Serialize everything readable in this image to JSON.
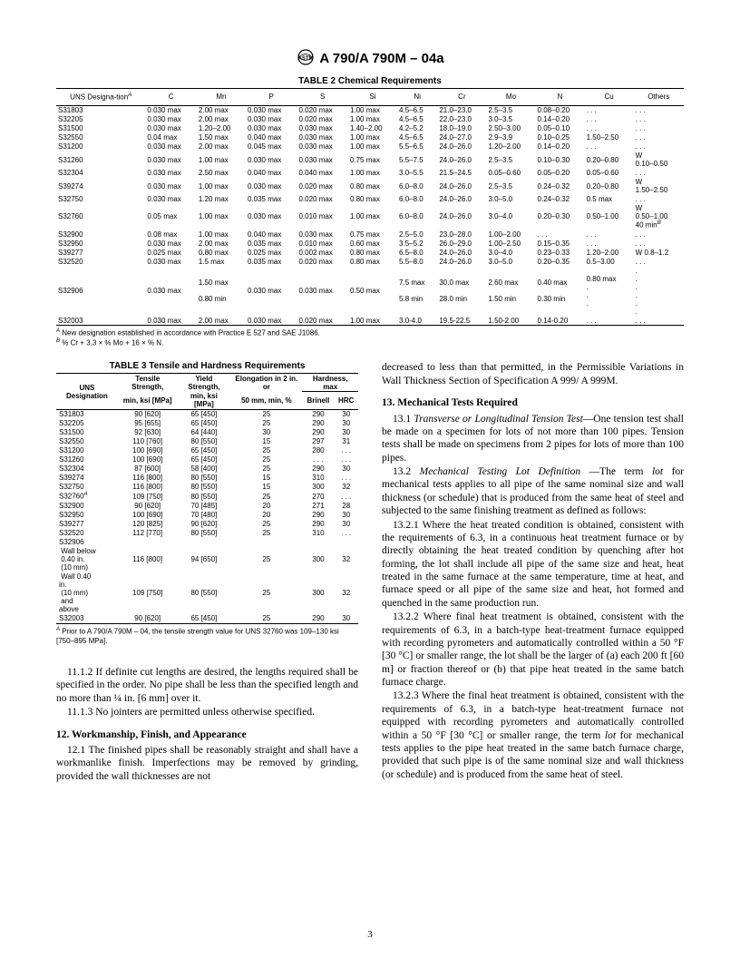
{
  "doc": {
    "logo_alt": "ASTM",
    "title": "A 790/A 790M – 04a",
    "page_number": "3"
  },
  "table2": {
    "caption": "TABLE 2   Chemical Requirements",
    "columns": [
      "UNS Designa-tion",
      "C",
      "Mn",
      "P",
      "S",
      "Si",
      "Ni",
      "Cr",
      "Mo",
      "N",
      "Cu",
      "Others"
    ],
    "col0_sup": "A",
    "rows": [
      [
        "S31803",
        "0.030 max",
        "2.00 max",
        "0.030 max",
        "0.020 max",
        "1.00 max",
        "4.5–6.5",
        "21.0–23.0",
        "2.5–3.5",
        "0.08–0.20",
        ". . .",
        ". . ."
      ],
      [
        "S32205",
        "0.030 max",
        "2.00 max",
        "0.030 max",
        "0.020 max",
        "1.00 max",
        "4.5–6.5",
        "22.0–23.0",
        "3.0–3.5",
        "0.14–0.20",
        ". . .",
        ". . ."
      ],
      [
        "S31500",
        "0.030 max",
        "1.20–2.00",
        "0.030 max",
        "0.030 max",
        "1.40–2.00",
        "4.2–5.2",
        "18.0–19.0",
        "2.50–3.00",
        "0.05–0.10",
        ". . .",
        ". . ."
      ],
      [
        "S32550",
        "0.04 max",
        "1.50 max",
        "0.040 max",
        "0.030 max",
        "1.00 max",
        "4.5–6.5",
        "24.0–27.0",
        "2.9–3.9",
        "0.10–0.25",
        "1.50–2.50",
        ". . ."
      ],
      [
        "S31200",
        "0.030 max",
        "2.00 max",
        "0.045 max",
        "0.030 max",
        "1.00 max",
        "5.5–6.5",
        "24.0–26.0",
        "1.20–2.00",
        "0.14–0.20",
        ". . .",
        ". . ."
      ],
      [
        "S31260",
        "0.030 max",
        "1.00 max",
        "0.030 max",
        "0.030 max",
        "0.75 max",
        "5.5–7.5",
        "24.0–26.0",
        "2.5–3.5",
        "0.10–0.30",
        "0.20–0.80",
        "W 0.10–0.50"
      ],
      [
        "S32304",
        "0.030 max",
        "2.50 max",
        "0.040 max",
        "0.040 max",
        "1.00 max",
        "3.0–5.5",
        "21.5–24.5",
        "0.05–0.60",
        "0.05–0.20",
        "0.05–0.60",
        ". . ."
      ],
      [
        "S39274",
        "0.030 max",
        "1.00 max",
        "0.030 max",
        "0.020 max",
        "0.80 max",
        "6.0–8.0",
        "24.0–26.0",
        "2.5–3.5",
        "0.24–0.32",
        "0.20–0.80",
        "W 1.50–2.50"
      ],
      [
        "S32750",
        "0.030 max",
        "1.20 max",
        "0.035 max",
        "0.020 max",
        "0.80 max",
        "6.0–8.0",
        "24.0–26.0",
        "3.0–5.0",
        "0.24–0.32",
        "0.5 max",
        ". . ."
      ],
      [
        "S32760",
        "0.05 max",
        "1.00 max",
        "0.030 max",
        "0.010 max",
        "1.00 max",
        "6.0–8.0",
        "24.0–26.0",
        "3.0–4.0",
        "0.20–0.30",
        "0.50–1.00",
        "W 0.50–1.00 40 min"
      ],
      [
        "S32900",
        "0.08 max",
        "1.00 max",
        "0.040 max",
        "0.030 max",
        "0.75 max",
        "2.5–5.0",
        "23.0–28.0",
        "1.00–2.00",
        ". . .",
        ". . .",
        ". . ."
      ],
      [
        "S32950",
        "0.030 max",
        "2.00 max",
        "0.035 max",
        "0.010 max",
        "0.60 max",
        "3.5–5.2",
        "26.0–29.0",
        "1.00–2.50",
        "0.15–0.35",
        ". . .",
        ". . ."
      ],
      [
        "S39277",
        "0.025 max",
        "0.80 max",
        "0.025 max",
        "0.002 max",
        "0.80 max",
        "6.5–8.0",
        "24.0–26.0",
        "3.0–4.0",
        "0.23–0.33",
        "1.20–2.00",
        "W 0.8–1.2"
      ],
      [
        "S32520",
        "0.030 max",
        "1.5 max",
        "0.035 max",
        "0.020 max",
        "0.80 max",
        "5.5–8.0",
        "24.0–26.0",
        "3.0–5.0",
        "0.20–0.35",
        "0.5–3.00",
        ". . ."
      ],
      [
        "S32906",
        "0.030 max",
        "1.50 max 0.80 min",
        "0.030 max",
        "0.030 max",
        "0.50 max",
        "7.5 max 5.8 min",
        "30.0 max 28.0 min",
        "2.60 max 1.50 min",
        "0.40 max 0.30 min",
        "0.80 max . . .",
        ". . . . . ."
      ],
      [
        "S32003",
        "0.030 max",
        "2.00 max",
        "0.030 max",
        "0.020 max",
        "1.00 max",
        "3.0-4.0",
        "19.5-22.5",
        "1.50-2.00",
        "0.14-0.20",
        ". . .",
        ". . ."
      ]
    ],
    "row10_others_sup": "B",
    "footnote_a": "New designation established in accordance with Practice E 527 and SAE J1086.",
    "footnote_b": "% Cr + 3.3 × % Mo + 16 × % N."
  },
  "table3": {
    "caption": "TABLE 3   Tensile and Hardness Requirements",
    "head": {
      "c1": "UNS Designation",
      "c2a": "Tensile Strength,",
      "c2b": "min, ksi [MPa]",
      "c3a": "Yield Strength,",
      "c3b": "min, ksi [MPa]",
      "c4a": "Elongation in 2 in. or",
      "c4b": "50 mm, min, %",
      "c5": "Hardness, max",
      "c5a": "Brinell",
      "c5b": "HRC"
    },
    "rows": [
      [
        "S31803",
        "90 [620]",
        "65 [450]",
        "25",
        "290",
        "30"
      ],
      [
        "S32205",
        "95 [655]",
        "65 [450]",
        "25",
        "290",
        "30"
      ],
      [
        "S31500",
        "92 [630]",
        "64 [440]",
        "30",
        "290",
        "30"
      ],
      [
        "S32550",
        "110 [760]",
        "80 [550]",
        "15",
        "297",
        "31"
      ],
      [
        "S31200",
        "100 [690]",
        "65 [450]",
        "25",
        "280",
        ". . ."
      ],
      [
        "S31260",
        "100 [690]",
        "65 [450]",
        "25",
        ". . .",
        ". . ."
      ],
      [
        "S32304",
        "87 [600]",
        "58 [400]",
        "25",
        "290",
        "30"
      ],
      [
        "S39274",
        "116 [800]",
        "80 [550]",
        "15",
        "310",
        ". . ."
      ],
      [
        "S32750",
        "116 [800]",
        "80 [550]",
        "15",
        "300",
        "32"
      ],
      [
        "S32760",
        "109 [750]",
        "80 [550]",
        "25",
        "270",
        ". . ."
      ],
      [
        "S32900",
        "90 [620]",
        "70 [485]",
        "20",
        "271",
        "28"
      ],
      [
        "S32950",
        "100 [690]",
        "70 [480]",
        "20",
        "290",
        "30"
      ],
      [
        "S39277",
        "120 [825]",
        "90 [620]",
        "25",
        "290",
        "30"
      ],
      [
        "S32520",
        "112 [770]",
        "80 [550]",
        "25",
        "310",
        ". . ."
      ]
    ],
    "row_s32760_sup": "A",
    "s32906_label": "S32906",
    "wallbelow": [
      "Wall below 0.40 in. (10 mm)",
      "116 [800]",
      "94 [650]",
      "25",
      "300",
      "32"
    ],
    "wallabove": [
      "Wall 0.40 in. (10 mm) and above",
      "109 [750]",
      "80 [550]",
      "25",
      "300",
      "32"
    ],
    "s32003": [
      "S32003",
      "90 [620]",
      "65 [450]",
      "25",
      "290",
      "30"
    ],
    "footnote_a": "Prior to A 790/A 790M – 04, the tensile strength value for UNS 32760 was 109–130 ksi [750–895 MPa]."
  },
  "text": {
    "p1": "11.1.2 If definite cut lengths are desired, the lengths required shall be specified in the order. No pipe shall be less than the specified length and no more than ¼ in. [6 mm] over it.",
    "p2": "11.1.3 No jointers are permitted unless otherwise specified.",
    "h12": "12. Workmanship, Finish, and Appearance",
    "p3": "12.1 The finished pipes shall be reasonably straight and shall have a workmanlike finish. Imperfections may be removed by grinding, provided the wall thicknesses are not",
    "p4": "decreased to less than that permitted, in the Permissible Variations in Wall Thickness Section of Specification A 999/ A 999M.",
    "h13": "13. Mechanical Tests Required",
    "p5_label": "13.1 ",
    "p5_ital": "Transverse or Longitudinal Tension Test",
    "p5_rest": "—One tension test shall be made on a specimen for lots of not more than 100 pipes. Tension tests shall be made on specimens from 2 pipes for lots of more than 100 pipes.",
    "p6_label": "13.2 ",
    "p6_ital": "Mechanical Testing Lot Definition ",
    "p6_rest": "—The term ",
    "p6_ital2": "lot",
    "p6_rest2": " for mechanical tests applies to all pipe of the same nominal size and wall thickness (or schedule) that is produced from the same heat of steel and subjected to the same finishing treatment as defined as follows:",
    "p7": "13.2.1 Where the heat treated condition is obtained, consistent with the requirements of 6.3, in a continuous heat treatment furnace or by directly obtaining the heat treated condition by quenching after hot forming, the lot shall include all pipe of the same size and heat, heat treated in the same furnace at the same temperature, time at heat, and furnace speed or all pipe of the same size and heat, hot formed and quenched in the same production run.",
    "p8": "13.2.2 Where final heat treatment is obtained, consistent with the requirements of 6.3, in a batch-type heat-treatment furnace equipped with recording pyrometers and automatically controlled within a 50 °F [30 °C] or smaller range, the lot shall be the larger of (a) each 200 ft [60 m] or fraction thereof or (b) that pipe heat treated in the same batch furnace charge.",
    "p9_a": "13.2.3 Where the final heat treatment is obtained, consistent with the requirements of 6.3, in a batch-type heat-treatment furnace not equipped with recording pyrometers and automatically controlled within a 50 °F [30 °C] or smaller range, the term ",
    "p9_ital": "lot",
    "p9_b": " for mechanical tests applies to the pipe heat treated in the same batch furnace charge, provided that such pipe is of the same nominal size and wall thickness (or schedule) and is produced from the same heat of steel."
  }
}
